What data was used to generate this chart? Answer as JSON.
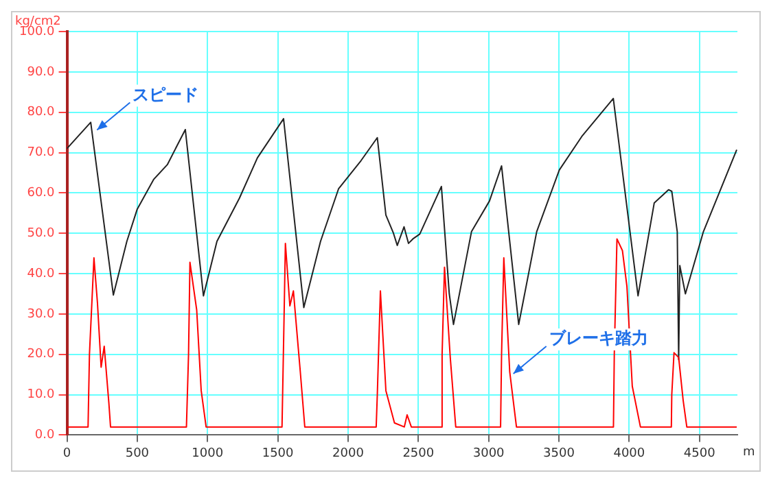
{
  "chart_data": {
    "type": "line",
    "ylabel": "kg/cm2",
    "xlabel": "m",
    "xlim": [
      0,
      4770
    ],
    "xticks": [
      0,
      500,
      1000,
      1500,
      2000,
      2500,
      3000,
      3500,
      4000,
      4500
    ],
    "ylim": [
      0,
      100
    ],
    "yticks": [
      {
        "value": 0,
        "label": "0.0"
      },
      {
        "value": 10,
        "label": "10.0"
      },
      {
        "value": 20,
        "label": "20.0"
      },
      {
        "value": 30,
        "label": "30.0"
      },
      {
        "value": 40,
        "label": "40.0"
      },
      {
        "value": 50,
        "label": "50.0"
      },
      {
        "value": 60,
        "label": "60.0"
      },
      {
        "value": 70,
        "label": "70.0"
      },
      {
        "value": 80,
        "label": "80.0"
      },
      {
        "value": 90,
        "label": "90.0"
      },
      {
        "value": 100,
        "label": "100.0"
      }
    ],
    "grid": true,
    "legend": false,
    "marker": "none",
    "line_style": "solid",
    "series": [
      {
        "color": "#222222",
        "x": [
          0,
          169,
          330,
          426,
          500,
          618,
          714,
          842,
          971,
          1067,
          1227,
          1355,
          1541,
          1685,
          1804,
          1932,
          2092,
          2208,
          2269,
          2323,
          2350,
          2398,
          2430,
          2461,
          2510,
          2664,
          2720,
          2750,
          2878,
          3006,
          3092,
          3214,
          3342,
          3503,
          3663,
          3887,
          4063,
          4178,
          4280,
          4303,
          4342,
          4352,
          4360,
          4400,
          4528,
          4765
        ],
        "values": [
          71,
          77.5,
          34.7,
          48,
          56,
          63.4,
          67,
          75.7,
          34.5,
          48,
          58.7,
          68.7,
          78.4,
          31.6,
          48,
          61,
          68,
          73.7,
          54.5,
          50,
          47,
          51.6,
          47.5,
          48.6,
          49.8,
          61.6,
          35,
          27.4,
          50.4,
          58,
          66.7,
          27.4,
          50.4,
          65.7,
          74,
          83.4,
          34.5,
          57.5,
          60.8,
          60.4,
          50.4,
          18.7,
          42,
          35,
          50.4,
          70.7
        ]
      },
      {
        "color": "#ff0000",
        "x": [
          0,
          150,
          160,
          192,
          217,
          243,
          265,
          298,
          310,
          850,
          865,
          875,
          923,
          955,
          990,
          1530,
          1545,
          1554,
          1586,
          1611,
          1660,
          1692,
          2200,
          2208,
          2230,
          2269,
          2330,
          2400,
          2420,
          2450,
          2660,
          2669,
          2686,
          2727,
          2766,
          3085,
          3092,
          3108,
          3150,
          3198,
          3888,
          3894,
          3913,
          3952,
          3984,
          4022,
          4080,
          4300,
          4303,
          4319,
          4352,
          4384,
          4410,
          4765
        ],
        "values": [
          2,
          2,
          20,
          43.9,
          32.7,
          16.8,
          22,
          8,
          2,
          2,
          20,
          42.8,
          31,
          11,
          2,
          2,
          30,
          47.5,
          32,
          35.7,
          15.7,
          2,
          2,
          10,
          35.7,
          11,
          3,
          2,
          5,
          2,
          2,
          20,
          41.6,
          19.2,
          2,
          2,
          20,
          43.9,
          15.7,
          2,
          2,
          20,
          48.6,
          45.7,
          36.8,
          12.1,
          2,
          2,
          10,
          20.4,
          19.2,
          8.6,
          2,
          2
        ]
      }
    ],
    "annotations": [
      {
        "text": "スピード",
        "x": 214,
        "y": 75.6
      },
      {
        "text": "ブレーキ踏力",
        "x": 3176,
        "y": 15.2
      }
    ]
  }
}
